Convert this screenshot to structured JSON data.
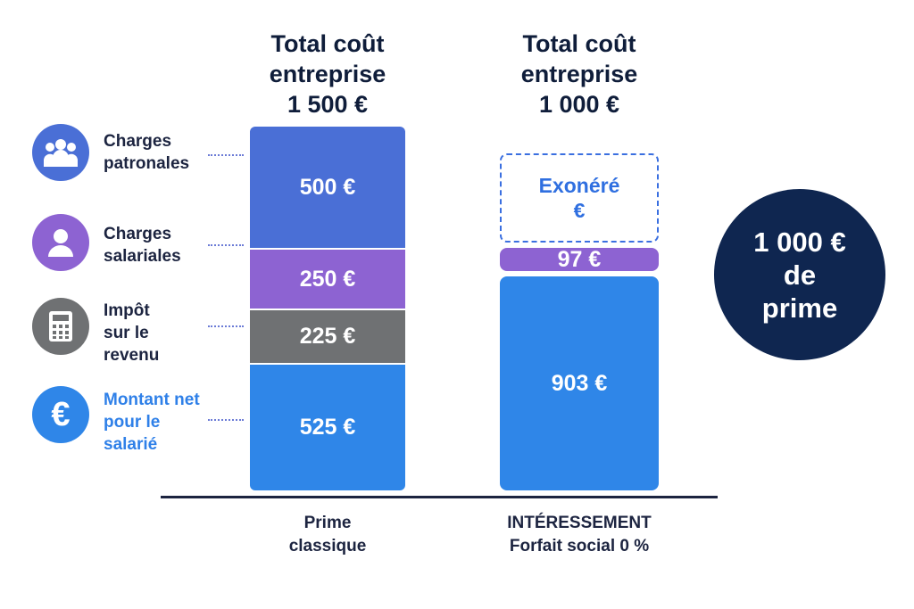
{
  "colors": {
    "patronales": "#4a6fd6",
    "salariales": "#8d63d2",
    "impot": "#6f7173",
    "net": "#2f86e8",
    "exonere_border": "#3a6fe0",
    "exonere_text": "#2f6fe0",
    "circle": "#0f2650",
    "axis": "#1c2440",
    "net_label": "#2f80e8"
  },
  "legend": [
    {
      "id": "patronales",
      "icon": "people-group-icon",
      "lines": [
        "Charges",
        "patronales"
      ]
    },
    {
      "id": "salariales",
      "icon": "person-icon",
      "lines": [
        "Charges",
        "salariales"
      ]
    },
    {
      "id": "impot",
      "icon": "calculator-icon",
      "lines": [
        "Impôt",
        "sur le",
        "revenu"
      ]
    },
    {
      "id": "net",
      "icon": "euro-icon",
      "lines": [
        "Montant net",
        "pour le",
        "salarié"
      ]
    }
  ],
  "chart_data": {
    "type": "bar",
    "stacked": true,
    "categories": [
      "Prime classique",
      "INTÉRESSEMENT Forfait social 0 %"
    ],
    "category_label_lines": [
      [
        "Prime",
        "classique"
      ],
      [
        "INTÉRESSEMENT",
        "Forfait social 0 %"
      ]
    ],
    "totals": [
      {
        "lines": [
          "Total coût",
          "entreprise",
          "1 500 €"
        ],
        "value": 1500
      },
      {
        "lines": [
          "Total coût",
          "entreprise",
          "1 000 €"
        ],
        "value": 1000
      }
    ],
    "series": [
      {
        "name": "Montant net pour le salarié",
        "values": [
          525,
          903
        ],
        "labels": [
          "525 €",
          "903 €"
        ]
      },
      {
        "name": "Impôt sur le revenu",
        "values": [
          225,
          0
        ],
        "labels": [
          "225 €",
          ""
        ]
      },
      {
        "name": "Charges salariales",
        "values": [
          250,
          97
        ],
        "labels": [
          "250 €",
          "97 €"
        ]
      },
      {
        "name": "Charges patronales",
        "values": [
          500,
          0
        ],
        "labels": [
          "500 €",
          "Exonéré €"
        ]
      }
    ],
    "exonere_lines": [
      "Exonéré",
      "€"
    ]
  },
  "badge": {
    "lines": [
      "1 000 €",
      "de",
      "prime"
    ]
  }
}
